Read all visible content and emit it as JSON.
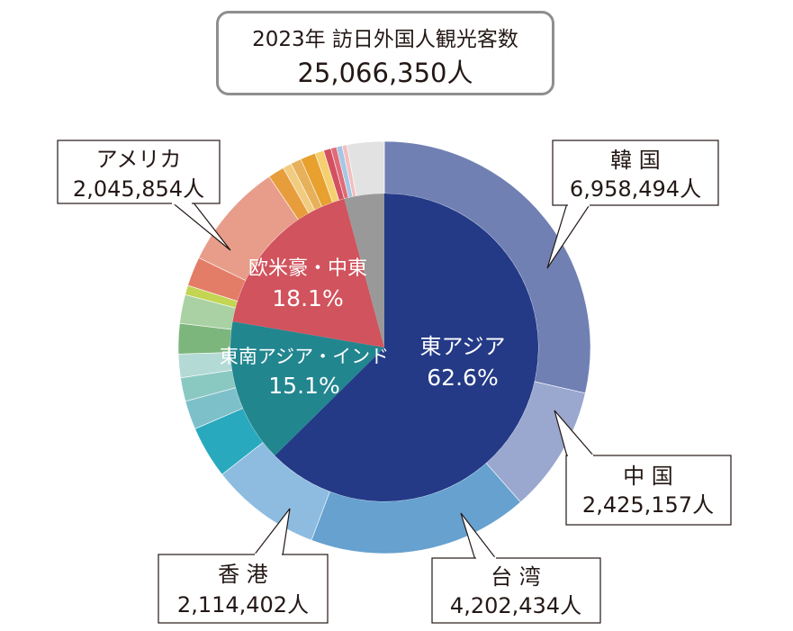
{
  "title": {
    "line1": "2023年 訪日外国人観光客数",
    "line2": "25,066,350人"
  },
  "chart_data": {
    "type": "donut",
    "total": 25066350,
    "inner": [
      {
        "name": "東アジア",
        "percent": "62.6%",
        "value": 62.6,
        "color": "#243a87"
      },
      {
        "name": "東南アジア・インド",
        "percent": "15.1%",
        "value": 15.1,
        "color": "#22868f"
      },
      {
        "name": "欧米豪・中東",
        "percent": "18.1%",
        "value": 18.1,
        "color": "#d1535d"
      },
      {
        "name": "",
        "percent": "",
        "value": 4.2,
        "color": "#999999"
      }
    ],
    "outer": [
      {
        "name": "韓 国",
        "value": 6958494,
        "label": "6,958,494人",
        "color": "#7080b3"
      },
      {
        "name": "中 国",
        "value": 2425157,
        "label": "2,425,157人",
        "color": "#9aa7cf"
      },
      {
        "name": "台 湾",
        "value": 4202434,
        "label": "4,202,434人",
        "color": "#66a1cf"
      },
      {
        "name": "香 港",
        "value": 2114402,
        "label": "2,114,402人",
        "color": "#8dbce0"
      },
      {
        "name": "",
        "value": 1000000,
        "color": "#29a9be"
      },
      {
        "name": "",
        "value": 550000,
        "color": "#7ec0ca"
      },
      {
        "name": "",
        "value": 450000,
        "color": "#8ac9c2"
      },
      {
        "name": "",
        "value": 450000,
        "color": "#b4dad6"
      },
      {
        "name": "",
        "value": 580000,
        "color": "#7db67c"
      },
      {
        "name": "",
        "value": 550000,
        "color": "#a9d1a4"
      },
      {
        "name": "",
        "value": 180000,
        "color": "#c3d552"
      },
      {
        "name": "",
        "value": 560000,
        "color": "#e47d67"
      },
      {
        "name": "アメリカ",
        "value": 2045854,
        "label": "2,045,854人",
        "color": "#e89d8b"
      },
      {
        "name": "",
        "value": 310000,
        "color": "#e89d3c"
      },
      {
        "name": "",
        "value": 170000,
        "color": "#f1cb7f"
      },
      {
        "name": "",
        "value": 200000,
        "color": "#e6b15a"
      },
      {
        "name": "",
        "value": 290000,
        "color": "#e8a02e"
      },
      {
        "name": "",
        "value": 170000,
        "color": "#f4d070"
      },
      {
        "name": "",
        "value": 140000,
        "color": "#d35061"
      },
      {
        "name": "",
        "value": 110000,
        "color": "#e06b77"
      },
      {
        "name": "",
        "value": 110000,
        "color": "#a6c7e3"
      },
      {
        "name": "",
        "value": 90000,
        "color": "#f2bfc1"
      },
      {
        "name": "",
        "value": 710000,
        "color": "#e2e2e2"
      }
    ],
    "callouts": [
      {
        "name": "韓 国",
        "value": "6,958,494人"
      },
      {
        "name": "中 国",
        "value": "2,425,157人"
      },
      {
        "name": "台 湾",
        "value": "4,202,434人"
      },
      {
        "name": "香 港",
        "value": "2,114,402人"
      },
      {
        "name": "アメリカ",
        "value": "2,045,854人"
      }
    ]
  }
}
